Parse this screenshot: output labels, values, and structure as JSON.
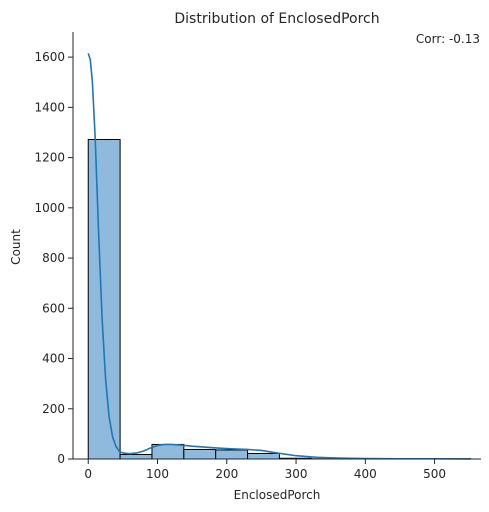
{
  "chart_data": {
    "type": "bar",
    "title": "Distribution of EnclosedPorch",
    "xlabel": "EnclosedPorch",
    "ylabel": "Count",
    "annotation": "Corr: -0.13",
    "xlim": [
      -22,
      567
    ],
    "ylim": [
      0,
      1700
    ],
    "xticks": [
      0,
      100,
      200,
      300,
      400,
      500
    ],
    "yticks": [
      0,
      200,
      400,
      600,
      800,
      1000,
      1200,
      1400,
      1600
    ],
    "bin_edges": [
      0,
      46,
      92,
      138,
      184,
      230,
      276,
      322,
      368,
      414,
      460,
      506,
      552
    ],
    "values": [
      1272,
      18,
      58,
      38,
      36,
      22,
      3,
      1,
      1,
      0,
      0,
      1
    ],
    "kde": {
      "x": [
        0,
        3,
        6,
        10,
        15,
        20,
        25,
        30,
        35,
        40,
        45,
        50,
        60,
        70,
        80,
        90,
        100,
        110,
        120,
        135,
        150,
        170,
        190,
        210,
        230,
        250,
        270,
        300,
        330,
        360,
        400,
        450,
        500,
        552
      ],
      "y": [
        1615,
        1590,
        1500,
        1280,
        900,
        560,
        320,
        170,
        90,
        50,
        30,
        24,
        21,
        24,
        32,
        44,
        54,
        58,
        58,
        55,
        51,
        47,
        43,
        40,
        38,
        34,
        25,
        13,
        7,
        4,
        2,
        1,
        1,
        0
      ]
    },
    "colors": {
      "bar_fill": "#8fbadd",
      "bar_edge": "#000000",
      "kde_line": "#1f77b4",
      "axis": "#262626"
    },
    "grid": false,
    "legend": "none"
  }
}
